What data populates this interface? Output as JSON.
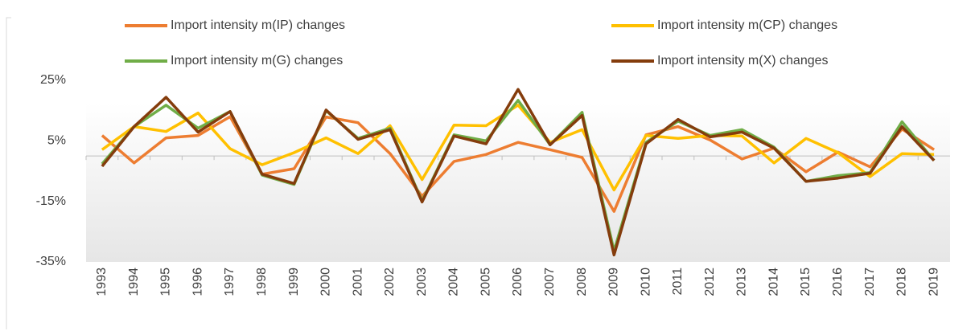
{
  "chart_data": {
    "type": "line",
    "categories": [
      "1993",
      "1994",
      "1995",
      "1996",
      "1997",
      "1998",
      "1999",
      "2000",
      "2001",
      "2002",
      "2003",
      "2004",
      "2005",
      "2006",
      "2007",
      "2008",
      "2009",
      "2010",
      "2011",
      "2012",
      "2013",
      "2014",
      "2015",
      "2016",
      "2017",
      "2018",
      "2019"
    ],
    "series": [
      {
        "name": "Import intensity m(IP) changes",
        "color": "#ed7d31",
        "values": [
          6.8,
          -2.3,
          6,
          6.8,
          13,
          -6,
          -4.2,
          12.9,
          11,
          0.8,
          -13.3,
          -1.8,
          0.5,
          4.5,
          2.1,
          -0.5,
          -18.3,
          7,
          9.7,
          5.3,
          -1,
          2.6,
          -5.2,
          1.3,
          -3.6,
          8.9,
          2.1
        ]
      },
      {
        "name": "Import intensity m(CP) changes",
        "color": "#ffc000",
        "values": [
          2.1,
          9.7,
          8.1,
          14.2,
          2.4,
          -2.9,
          1.1,
          6,
          0.8,
          10,
          -7.8,
          10.2,
          10,
          16.8,
          4.5,
          8.7,
          -11.2,
          6.8,
          5.8,
          6.8,
          6.6,
          -2.3,
          5.8,
          1.1,
          -6.8,
          0.8,
          0.5
        ]
      },
      {
        "name": "Import intensity m(G) changes",
        "color": "#70ad47",
        "values": [
          -2.6,
          9.7,
          16.8,
          9.2,
          14.7,
          -6.3,
          -9.4,
          15,
          5.8,
          9.2,
          -14.9,
          7,
          5,
          18.4,
          3.7,
          14.4,
          -31.4,
          4.5,
          11.5,
          6.8,
          8.7,
          2.9,
          -8.4,
          -6.5,
          -5.5,
          11.3,
          -1.5
        ]
      },
      {
        "name": "Import intensity m(X) changes",
        "color": "#843c0c",
        "values": [
          -3.4,
          9.7,
          19.4,
          7.9,
          14.7,
          -6,
          -9.1,
          15.2,
          5.5,
          8.7,
          -15.2,
          6.6,
          4,
          22,
          3.7,
          13.4,
          -32.7,
          4,
          12.1,
          6.3,
          7.9,
          2.6,
          -8.4,
          -7.3,
          -5.7,
          9.7,
          -1.5
        ]
      }
    ],
    "ylim": [
      -35,
      30
    ],
    "yticks": [
      {
        "value": -35,
        "label": "-35%"
      },
      {
        "value": -15,
        "label": "-15%"
      },
      {
        "value": 5,
        "label": "5%"
      },
      {
        "value": 25,
        "label": "25%"
      }
    ],
    "grid": false
  }
}
